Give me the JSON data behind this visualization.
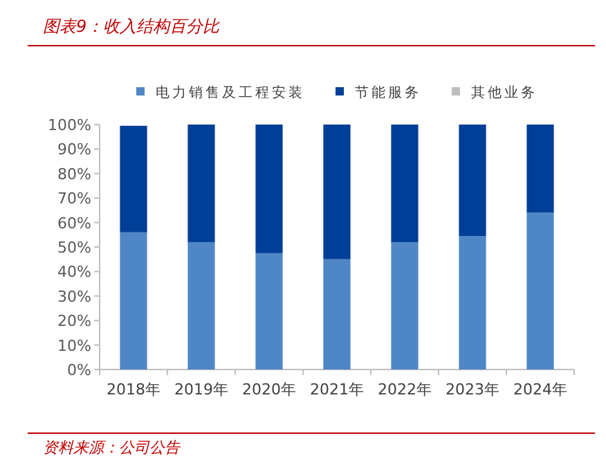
{
  "chart_data": {
    "type": "bar",
    "stacked": true,
    "title": "图表9：收入结构百分比",
    "annotations": [
      "资料来源：公司公告"
    ],
    "categories": [
      "2018年",
      "2019年",
      "2020年",
      "2021年",
      "2022年",
      "2023年",
      "2024年"
    ],
    "series": [
      {
        "name": "电力销售及工程安装",
        "color": "#4f86c6",
        "values": [
          56,
          52,
          47.5,
          45,
          52,
          54.5,
          64
        ]
      },
      {
        "name": "节能服务",
        "color": "#003f98",
        "values": [
          43.5,
          48,
          52.5,
          55,
          48,
          45.5,
          36
        ]
      },
      {
        "name": "其他业务",
        "color": "#bfbfbf",
        "values": [
          null,
          0,
          0,
          0,
          0,
          0,
          0
        ]
      }
    ],
    "legend": "top",
    "ylim": [
      0,
      100
    ],
    "yticks": [
      {
        "value": 0,
        "label": "0%"
      },
      {
        "value": 10,
        "label": "10%"
      },
      {
        "value": 20,
        "label": "20%"
      },
      {
        "value": 30,
        "label": "30%"
      },
      {
        "value": 40,
        "label": "40%"
      },
      {
        "value": 50,
        "label": "50%"
      },
      {
        "value": 60,
        "label": "60%"
      },
      {
        "value": 70,
        "label": "70%"
      },
      {
        "value": 80,
        "label": "80%"
      },
      {
        "value": 90,
        "label": "90%"
      },
      {
        "value": 100,
        "label": "100%"
      }
    ]
  }
}
